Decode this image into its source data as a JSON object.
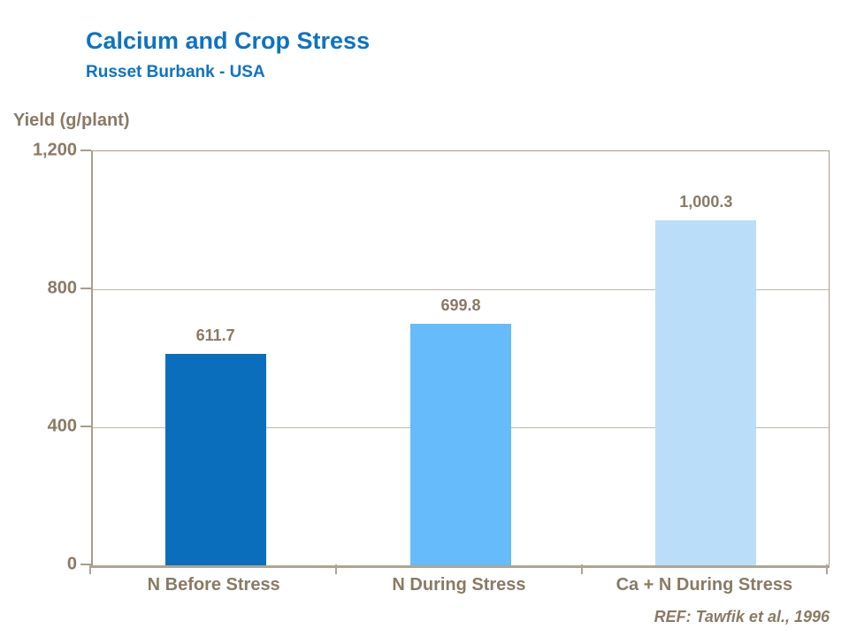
{
  "header": {
    "title": "Calcium and Crop Stress",
    "subtitle": "Russet Burbank - USA"
  },
  "footer": {
    "reference": "REF: Tawfik et al., 1996"
  },
  "colors": {
    "title_blue": "#0d73c2",
    "text_taupe": "#8a7a64",
    "axis_taupe": "#a99c8b",
    "gridline": "#c1b9ad"
  },
  "chart_data": {
    "type": "bar",
    "title": "Calcium and Crop Stress",
    "subtitle": "Russet Burbank - USA",
    "ylabel": "Yield (g/plant)",
    "xlabel": "",
    "categories": [
      "N Before Stress",
      "N During Stress",
      "Ca + N During Stress"
    ],
    "values": [
      611.7,
      699.8,
      1000.3
    ],
    "value_labels": [
      "611.7",
      "699.8",
      "1,000.3"
    ],
    "bar_colors": [
      "#0a6ebd",
      "#66bbfb",
      "#badef9"
    ],
    "ylim": [
      0,
      1200
    ],
    "yticks": [
      0,
      400,
      800,
      1200
    ],
    "ytick_labels": [
      "0",
      "400",
      "800",
      "1,200"
    ],
    "grid": "horizontal gridlines at 400 and 800",
    "legend": "none",
    "annotation": "REF: Tawfik et al., 1996"
  }
}
